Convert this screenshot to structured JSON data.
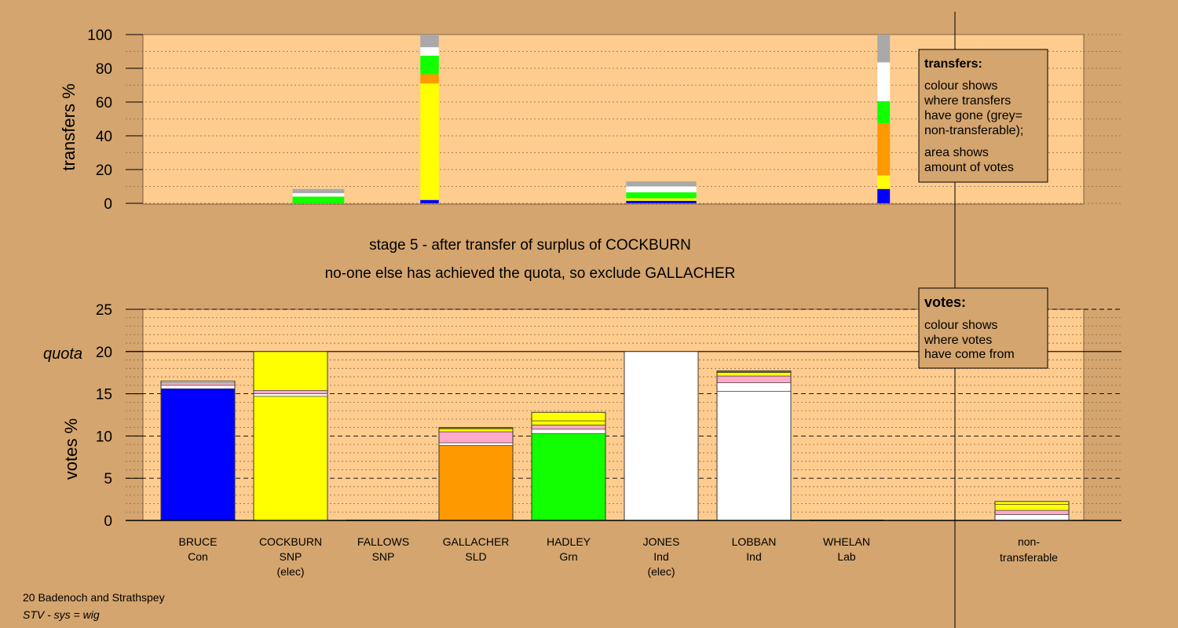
{
  "colors": {
    "background": "#d4a56e",
    "plot_fill": "#ffcc8f",
    "Con": "#0000ff",
    "SNP": "#ffff00",
    "SLD": "#ff9900",
    "Grn": "#11ff00",
    "Ind": "#ffffff",
    "Lab": "#ff0000",
    "pink": "#ffaac8",
    "nontransferable": "#a9a9a9",
    "olive": "#808000"
  },
  "titles": {
    "stage": "stage 5 - after transfer of surplus of COCKBURN",
    "action": "no-one else has achieved the quota, so exclude GALLACHER"
  },
  "footer": {
    "line1": "20 Badenoch and Strathspey",
    "line2": "STV - sys = wig"
  },
  "legends": {
    "transfers": {
      "title": "transfers:",
      "lines": [
        "colour shows",
        "where transfers",
        "have gone (grey=",
        "non-transferable);"
      ],
      "lines2": [
        "area shows",
        "amount of votes"
      ]
    },
    "votes": {
      "title": "votes:",
      "lines": [
        "colour shows",
        "where votes",
        "have come from"
      ]
    }
  },
  "candidates": [
    {
      "name": "BRUCE",
      "party": "Con",
      "note": ""
    },
    {
      "name": "COCKBURN",
      "party": "SNP",
      "note": "(elec)"
    },
    {
      "name": "FALLOWS",
      "party": "SNP",
      "note": ""
    },
    {
      "name": "GALLACHER",
      "party": "SLD",
      "note": ""
    },
    {
      "name": "HADLEY",
      "party": "Grn",
      "note": ""
    },
    {
      "name": "JONES",
      "party": "Ind",
      "note": "(elec)"
    },
    {
      "name": "LOBBAN",
      "party": "Ind",
      "note": ""
    },
    {
      "name": "WHELAN",
      "party": "Lab",
      "note": ""
    }
  ],
  "nontransferable_label": {
    "line1": "non-",
    "line2": "transferable"
  },
  "chart_data": [
    {
      "type": "bar",
      "title": "",
      "ylabel": "transfers %",
      "ylim": [
        0,
        100
      ],
      "yticks": [
        0,
        20,
        40,
        60,
        80,
        100
      ],
      "bars": [
        {
          "slot": 1.3,
          "width": 0.7,
          "segments": [
            {
              "color": "#11ff00",
              "value": 4
            },
            {
              "color": "#ffffff",
              "value": 2
            },
            {
              "color": "#a9a9a9",
              "value": 2.5
            }
          ]
        },
        {
          "slot": 2.5,
          "width": 0.25,
          "segments": [
            {
              "color": "#0000ff",
              "value": 2
            },
            {
              "color": "#ffff00",
              "value": 69
            },
            {
              "color": "#ff9900",
              "value": 5.5
            },
            {
              "color": "#11ff00",
              "value": 11
            },
            {
              "color": "#ffffff",
              "value": 5
            },
            {
              "color": "#a9a9a9",
              "value": 7.5
            }
          ]
        },
        {
          "slot": 5.0,
          "width": 0.95,
          "segments": [
            {
              "color": "#0000ff",
              "value": 1.5
            },
            {
              "color": "#ffff00",
              "value": 1.5
            },
            {
              "color": "#11ff00",
              "value": 3.5
            },
            {
              "color": "#ffffff",
              "value": 3.5
            },
            {
              "color": "#a9a9a9",
              "value": 3
            }
          ]
        },
        {
          "slot": 7.4,
          "width": 0.17,
          "segments": [
            {
              "color": "#0000ff",
              "value": 8.5
            },
            {
              "color": "#ffff00",
              "value": 8
            },
            {
              "color": "#ff9900",
              "value": 31
            },
            {
              "color": "#11ff00",
              "value": 13
            },
            {
              "color": "#ffffff",
              "value": 23
            },
            {
              "color": "#a9a9a9",
              "value": 16.5
            }
          ]
        }
      ]
    },
    {
      "type": "bar",
      "title": "",
      "ylabel": "votes %",
      "ylim": [
        0,
        25
      ],
      "yticks": [
        0,
        5,
        10,
        15,
        20,
        25
      ],
      "quota": 20,
      "quota_label": "quota",
      "bars": [
        {
          "slot": 0,
          "segments": [
            {
              "color": "#0000ff",
              "value": 15.6
            },
            {
              "color": "#ffffff",
              "value": 0.4
            },
            {
              "color": "#ffaac8",
              "value": 0.3
            },
            {
              "color": "#ffffff",
              "value": 0.2
            }
          ]
        },
        {
          "slot": 1,
          "segments": [
            {
              "color": "#ffff00",
              "value": 14.7
            },
            {
              "color": "#ffffff",
              "value": 0.3
            },
            {
              "color": "#ffaac8",
              "value": 0.4
            },
            {
              "color": "#ffff00",
              "value": 4.6
            }
          ]
        },
        {
          "slot": 2,
          "segments": [
            {
              "color": "#ffff00",
              "value": 0.05
            }
          ]
        },
        {
          "slot": 3,
          "segments": [
            {
              "color": "#ff9900",
              "value": 8.9
            },
            {
              "color": "#ffffff",
              "value": 0.3
            },
            {
              "color": "#ffaac8",
              "value": 1.3
            },
            {
              "color": "#ffff00",
              "value": 0.35
            },
            {
              "color": "#808000",
              "value": 0.15
            }
          ]
        },
        {
          "slot": 4,
          "segments": [
            {
              "color": "#11ff00",
              "value": 10.3
            },
            {
              "color": "#ffffff",
              "value": 0.5
            },
            {
              "color": "#ffaac8",
              "value": 0.5
            },
            {
              "color": "#ffff00",
              "value": 0.5
            },
            {
              "color": "#ffff00",
              "value": 1.0
            }
          ]
        },
        {
          "slot": 5,
          "segments": [
            {
              "color": "#ffffff",
              "value": 20
            }
          ]
        },
        {
          "slot": 6,
          "segments": [
            {
              "color": "#ffffff",
              "value": 15.3
            },
            {
              "color": "#ffffff",
              "value": 1.0
            },
            {
              "color": "#ffaac8",
              "value": 0.8
            },
            {
              "color": "#ffff00",
              "value": 0.4
            },
            {
              "color": "#808000",
              "value": 0.1
            },
            {
              "color": "#ffff00",
              "value": 0.1
            }
          ]
        },
        {
          "slot": 7,
          "segments": [
            {
              "color": "#ff0000",
              "value": 0.05
            }
          ]
        },
        {
          "slot": 9,
          "segments": [
            {
              "color": "#ffffff",
              "value": 0.7
            },
            {
              "color": "#ffaac8",
              "value": 0.5
            },
            {
              "color": "#ffff00",
              "value": 0.7
            },
            {
              "color": "#ffff00",
              "value": 0.35
            }
          ]
        }
      ]
    }
  ]
}
